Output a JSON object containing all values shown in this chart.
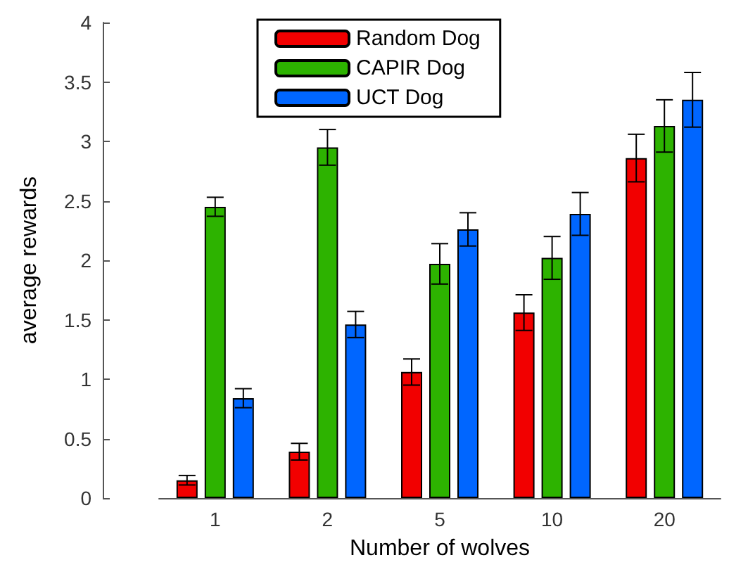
{
  "chart_data": {
    "type": "bar",
    "xlabel": "Number of wolves",
    "ylabel": "average rewards",
    "categories": [
      "1",
      "2",
      "5",
      "10",
      "20"
    ],
    "series": [
      {
        "name": "Random Dog",
        "color": "#f20000",
        "values": [
          0.15,
          0.39,
          1.06,
          1.56,
          2.86
        ],
        "errors": [
          0.04,
          0.07,
          0.11,
          0.15,
          0.2
        ]
      },
      {
        "name": "CAPIR Dog",
        "color": "#2db300",
        "values": [
          2.45,
          2.95,
          1.97,
          2.02,
          3.13
        ],
        "errors": [
          0.08,
          0.15,
          0.17,
          0.18,
          0.22
        ]
      },
      {
        "name": "UCT Dog",
        "color": "#0066ff",
        "values": [
          0.84,
          1.46,
          2.26,
          2.39,
          3.35
        ],
        "errors": [
          0.08,
          0.11,
          0.14,
          0.18,
          0.23
        ]
      }
    ],
    "ylim": [
      0,
      4
    ],
    "yticks": [
      0,
      0.5,
      1,
      1.5,
      2,
      2.5,
      3,
      3.5,
      4
    ],
    "grid": false,
    "legend": "top"
  }
}
